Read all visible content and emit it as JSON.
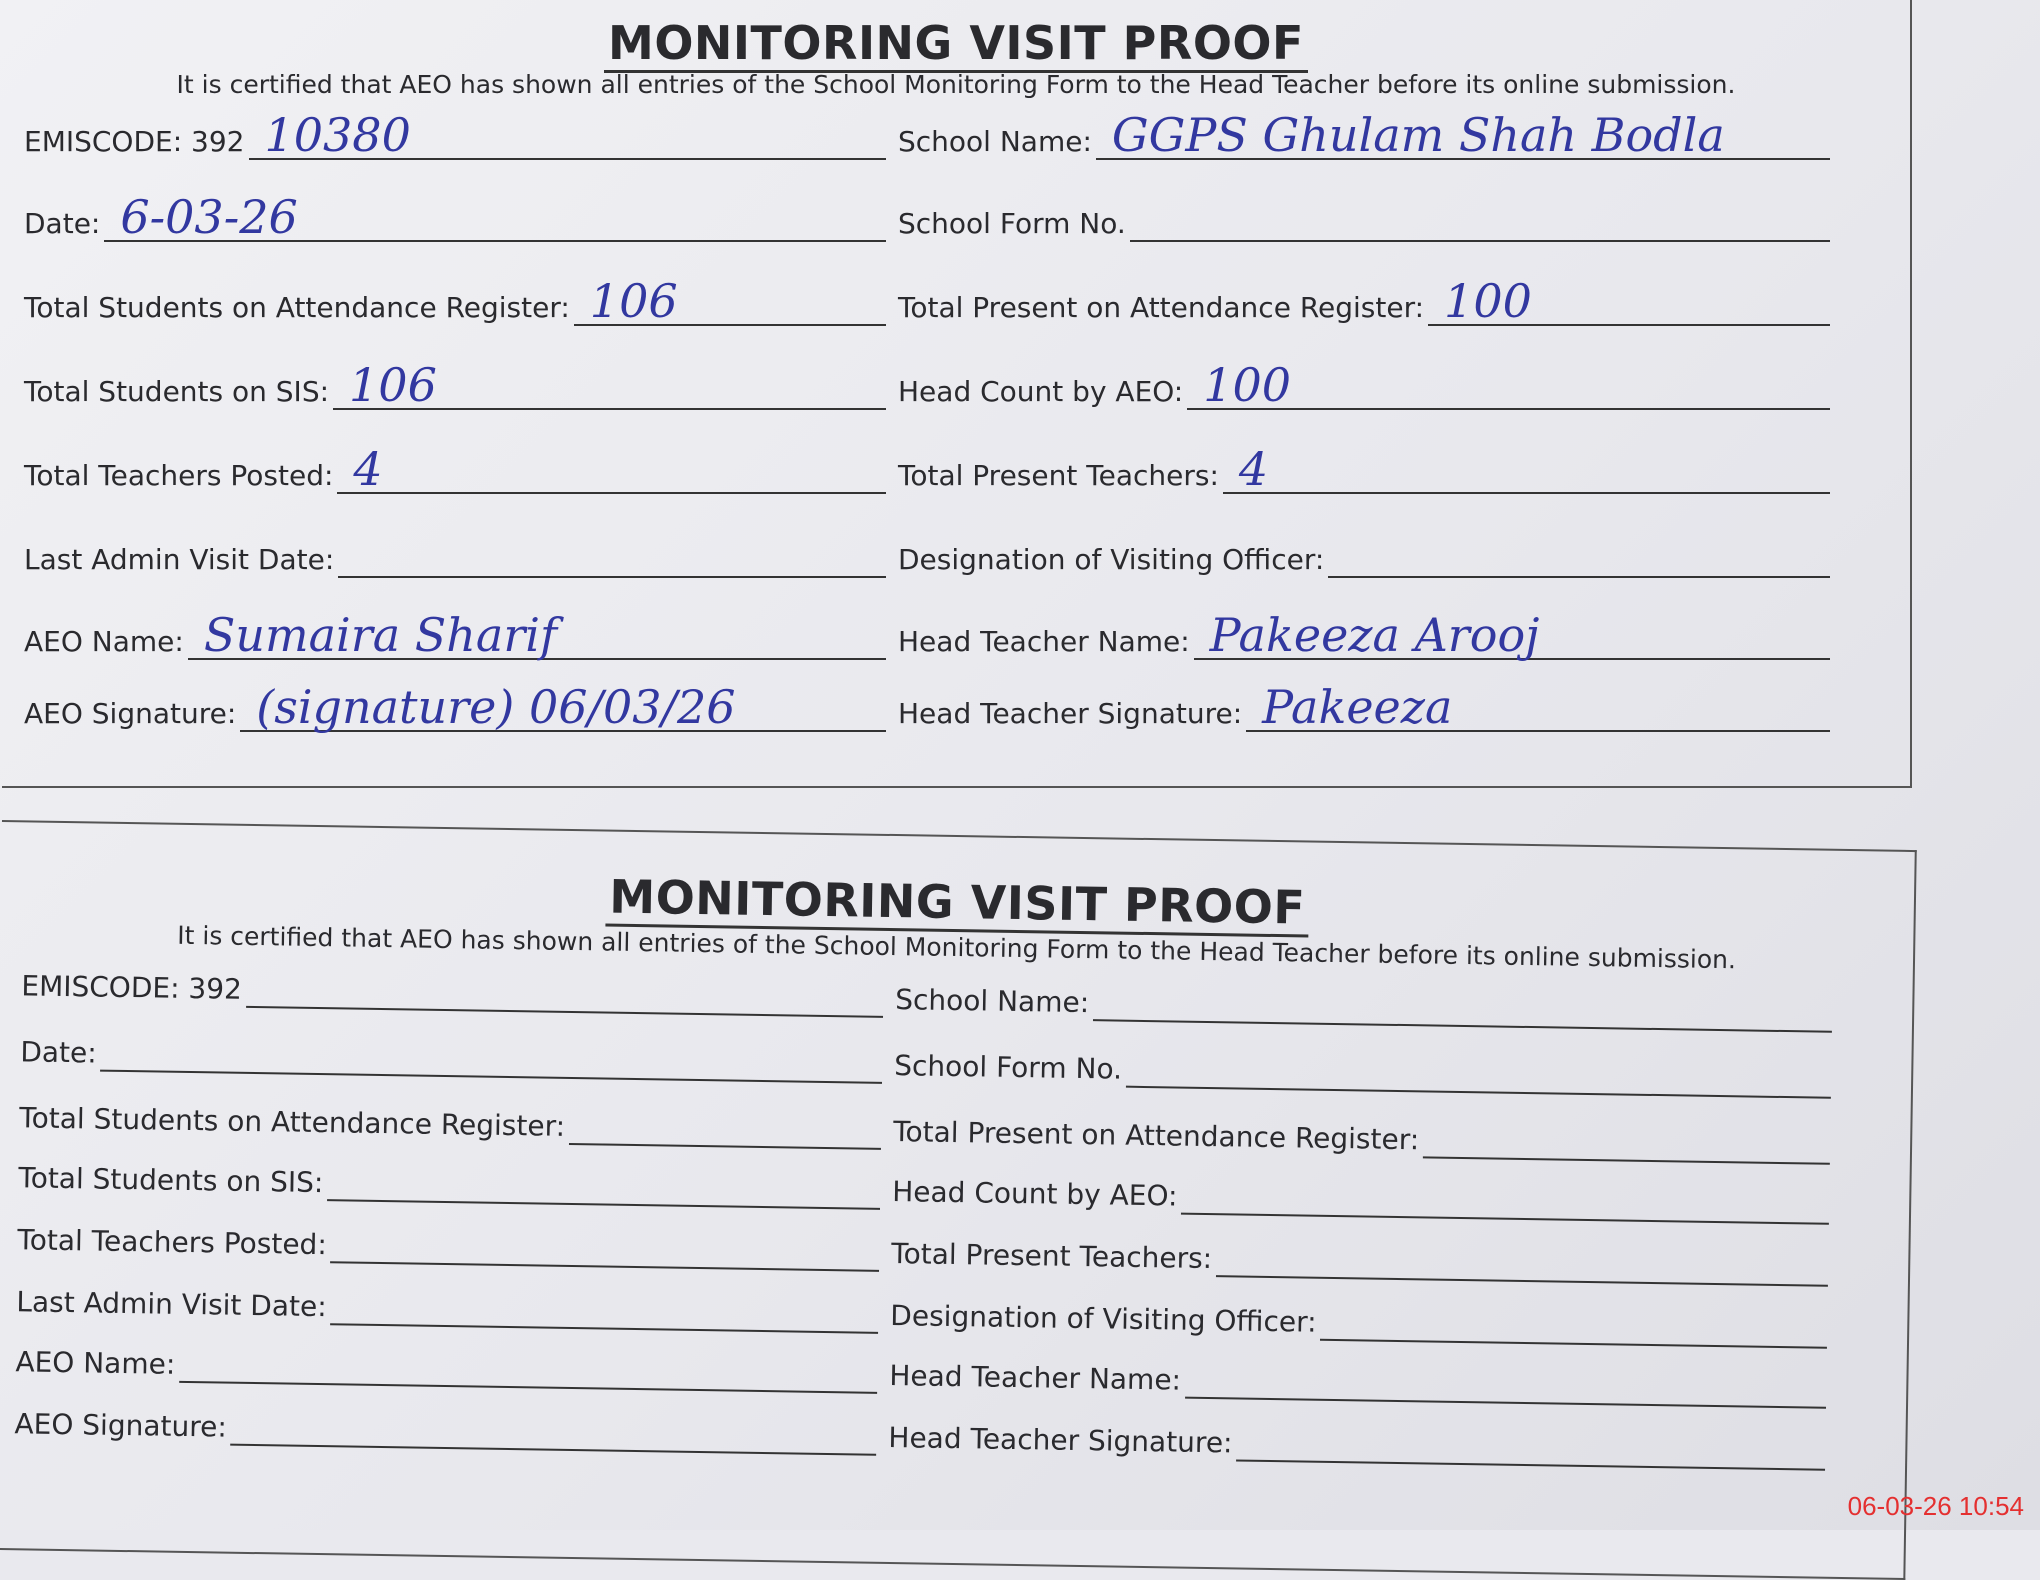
{
  "forms": [
    {
      "title": "MONITORING VISIT PROOF",
      "certification": "It is certified that AEO has shown all entries of the School Monitoring Form to the Head Teacher before its online submission.",
      "rows": [
        [
          {
            "label": "EMISCODE: 392",
            "value": "10380"
          },
          {
            "label": "School Name:",
            "value": "GGPS   Ghulam   Shah   Bodla"
          }
        ],
        [
          {
            "label": "Date:",
            "value": "6-03-26"
          },
          {
            "label": "School Form No.",
            "value": ""
          }
        ],
        [
          {
            "label": "Total Students on Attendance Register:",
            "value": "106"
          },
          {
            "label": "Total Present on Attendance Register:",
            "value": "100"
          }
        ],
        [
          {
            "label": "Total Students on SIS:",
            "value": "106"
          },
          {
            "label": "Head Count by AEO:",
            "value": "100"
          }
        ],
        [
          {
            "label": "Total Teachers Posted:",
            "value": "4"
          },
          {
            "label": "Total Present Teachers:",
            "value": "4"
          }
        ],
        [
          {
            "label": "Last Admin Visit Date:",
            "value": ""
          },
          {
            "label": "Designation of Visiting Officer:",
            "value": ""
          }
        ],
        [
          {
            "label": "AEO Name:",
            "value": "Sumaira      Sharif"
          },
          {
            "label": "Head Teacher Name:",
            "value": "Pakeeza  Arooj"
          }
        ],
        [
          {
            "label": "AEO Signature:",
            "value": "(signature) 06/03/26"
          },
          {
            "label": "Head Teacher Signature:",
            "value": "Pakeeza"
          }
        ]
      ]
    },
    {
      "title": "MONITORING VISIT PROOF",
      "certification": "It is certified that AEO has shown all entries of the School Monitoring Form to the Head Teacher before its online submission.",
      "rows": [
        [
          {
            "label": "EMISCODE: 392",
            "value": ""
          },
          {
            "label": "School Name:",
            "value": ""
          }
        ],
        [
          {
            "label": "Date:",
            "value": ""
          },
          {
            "label": "School Form No.",
            "value": ""
          }
        ],
        [
          {
            "label": "Total Students on Attendance Register:",
            "value": ""
          },
          {
            "label": "Total Present on Attendance Register:",
            "value": ""
          }
        ],
        [
          {
            "label": "Total Students on SIS:",
            "value": ""
          },
          {
            "label": "Head Count by AEO:",
            "value": ""
          }
        ],
        [
          {
            "label": "Total Teachers Posted:",
            "value": ""
          },
          {
            "label": "Total Present Teachers:",
            "value": ""
          }
        ],
        [
          {
            "label": "Last Admin Visit Date:",
            "value": ""
          },
          {
            "label": "Designation of Visiting Officer:",
            "value": ""
          }
        ],
        [
          {
            "label": "AEO Name:",
            "value": ""
          },
          {
            "label": "Head Teacher Name:",
            "value": ""
          }
        ],
        [
          {
            "label": "AEO Signature:",
            "value": ""
          },
          {
            "label": "Head Teacher Signature:",
            "value": ""
          }
        ]
      ]
    }
  ],
  "timestamp": "06-03-26  10:54",
  "colors": {
    "ink": "#3238a0",
    "stamp": "#e43030"
  }
}
